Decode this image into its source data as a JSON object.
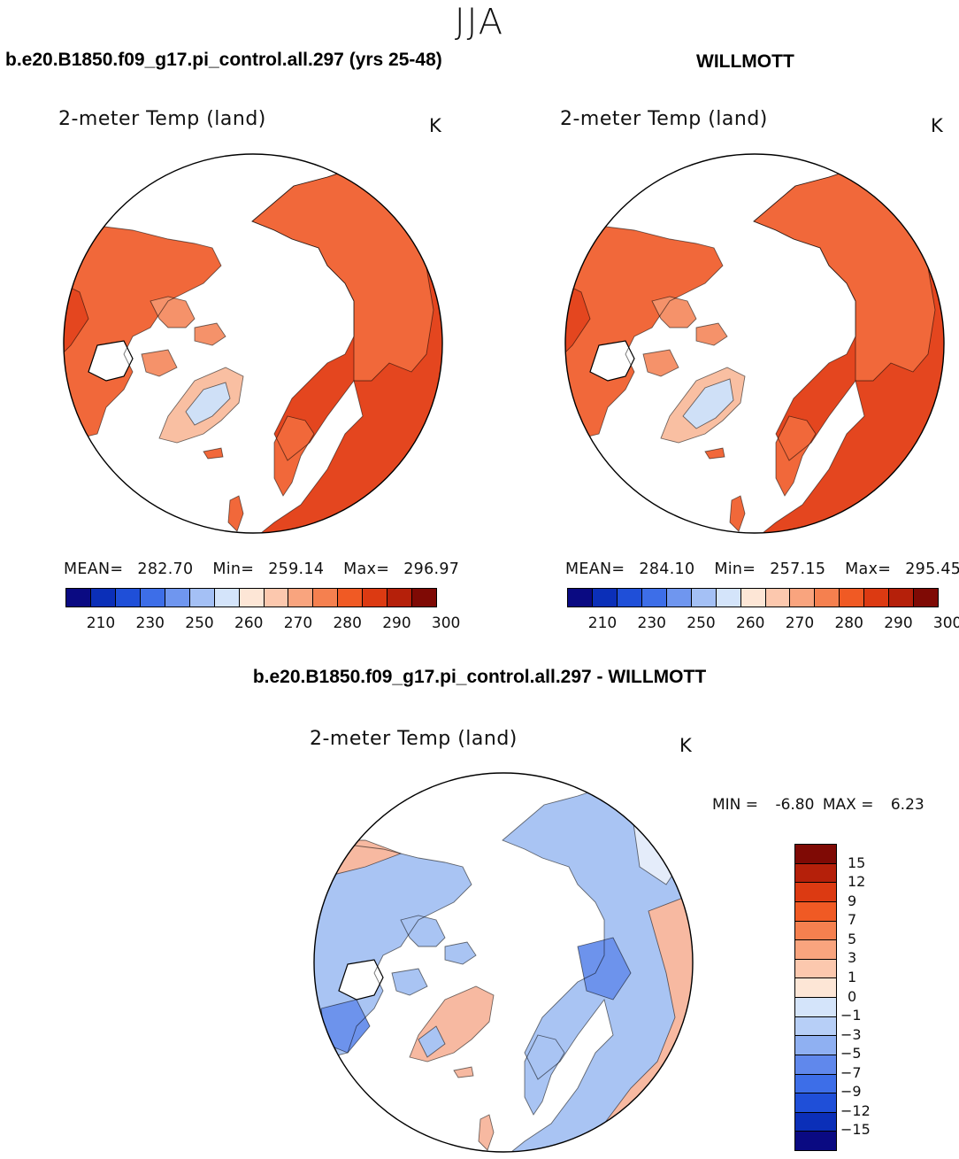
{
  "season": "JJA",
  "panels": {
    "left": {
      "case_title": "b.e20.B1850.f09_g17.pi_control.all.297 (yrs 25-48)",
      "variable": "2-meter Temp (land)",
      "unit": "K",
      "mean_label": "MEAN=",
      "mean_value": "282.70",
      "min_label": "Min=",
      "min_value": "259.14",
      "max_label": "Max=",
      "max_value": "296.97"
    },
    "right": {
      "case_title": "WILLMOTT",
      "variable": "2-meter Temp (land)",
      "unit": "K",
      "mean_label": "MEAN=",
      "mean_value": "284.10",
      "min_label": "Min=",
      "min_value": "257.15",
      "max_label": "Max=",
      "max_value": "295.45"
    },
    "diff": {
      "case_title": "b.e20.B1850.f09_g17.pi_control.all.297 - WILLMOTT",
      "variable": "2-meter Temp (land)",
      "unit": "K",
      "min_label": "MIN =",
      "min_value": "-6.80",
      "max_label": "MAX =",
      "max_value": "6.23"
    }
  },
  "abs_colorbar": {
    "tick_labels": [
      "210",
      "230",
      "250",
      "260",
      "270",
      "280",
      "290",
      "300"
    ],
    "colors": [
      "#0a0a82",
      "#0b2fb8",
      "#1f4fd8",
      "#3d6ee8",
      "#6f96ef",
      "#a4c0f5",
      "#d4e4fa",
      "#fde6d6",
      "#fcc8ae",
      "#f9a47e",
      "#f5804f",
      "#f05a24",
      "#dc3a12",
      "#b5200a",
      "#7f0a05"
    ]
  },
  "diff_colorbar": {
    "labels": [
      "15",
      "12",
      "9",
      "7",
      "5",
      "3",
      "1",
      "0",
      "−1",
      "−3",
      "−5",
      "−7",
      "−9",
      "−12",
      "−15"
    ],
    "colors": [
      "#7f0a05",
      "#b5200a",
      "#dc3a12",
      "#f05a24",
      "#f5804f",
      "#f9a47e",
      "#fcc8ae",
      "#fde6d6",
      "#d4e4fa",
      "#b7cff7",
      "#8fb0f2",
      "#6088ec",
      "#3d6ee8",
      "#1f4fd8",
      "#0b2fb8",
      "#0a0a82"
    ]
  },
  "map_colors": {
    "land_warm": "#f1683a",
    "land_hot": "#e4461f",
    "land_mid": "#f5926a",
    "land_cool": "#f9bfa2",
    "ice": "#cfe0f7",
    "diff_blue": "#a9c4f3",
    "diff_blue_dark": "#6d93ec",
    "diff_pale": "#e4ecfa",
    "diff_red": "#f7b9a1",
    "ocean": "#ffffff",
    "coast": "#000000"
  }
}
